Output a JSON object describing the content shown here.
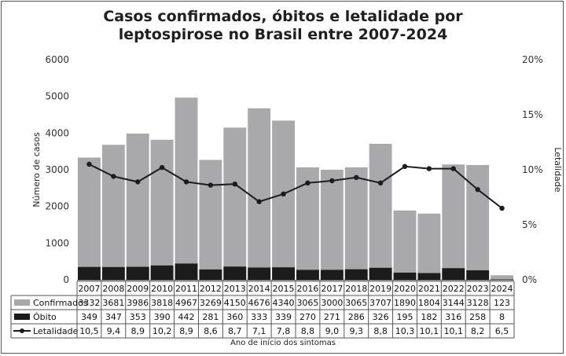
{
  "chart_data": {
    "type": "bar",
    "title_lines": [
      "Casos confirmados, óbitos e letalidade por",
      "leptospirose no Brasil entre 2007-2024"
    ],
    "xlabel": "Ano de início dos sintomas",
    "ylabel": "Número de casos",
    "y2label": "Letalidade",
    "ylim": [
      0,
      6000
    ],
    "yticks": [
      "0",
      "1000",
      "2000",
      "3000",
      "4000",
      "5000",
      "6000"
    ],
    "y2lim": [
      0,
      20
    ],
    "y2ticks": [
      "0%",
      "5%",
      "10%",
      "15%",
      "20%"
    ],
    "categories": [
      "2007",
      "2008",
      "2009",
      "2010",
      "2011",
      "2012",
      "2013",
      "2014",
      "2015",
      "2016",
      "2017",
      "2018",
      "2019",
      "2020",
      "2021",
      "2022",
      "2023",
      "2024"
    ],
    "series": [
      {
        "name": "Confirmados",
        "kind": "bar",
        "color": "#a9a9ab",
        "values": [
          3332,
          3681,
          3986,
          3818,
          4967,
          3269,
          4150,
          4676,
          4340,
          3065,
          3000,
          3065,
          3707,
          1890,
          1804,
          3144,
          3128,
          123
        ],
        "labels": [
          "3332",
          "3681",
          "3986",
          "3818",
          "4967",
          "3269",
          "4150",
          "4676",
          "4340",
          "3065",
          "3000",
          "3065",
          "3707",
          "1890",
          "1804",
          "3144",
          "3128",
          "123"
        ]
      },
      {
        "name": "Óbito",
        "kind": "bar",
        "color": "#1c1c1c",
        "values": [
          349,
          347,
          353,
          390,
          442,
          281,
          360,
          333,
          339,
          270,
          271,
          286,
          326,
          195,
          182,
          316,
          258,
          8
        ],
        "labels": [
          "349",
          "347",
          "353",
          "390",
          "442",
          "281",
          "360",
          "333",
          "339",
          "270",
          "271",
          "286",
          "326",
          "195",
          "182",
          "316",
          "258",
          "8"
        ]
      },
      {
        "name": "Letalidade",
        "kind": "line",
        "axis": "right",
        "color": "#1c1c1c",
        "values": [
          10.5,
          9.4,
          8.9,
          10.2,
          8.9,
          8.6,
          8.7,
          7.1,
          7.8,
          8.8,
          9.0,
          9.3,
          8.8,
          10.3,
          10.1,
          10.1,
          8.2,
          6.5
        ],
        "labels": [
          "10,5",
          "9,4",
          "8,9",
          "10,2",
          "8,9",
          "8,6",
          "8,7",
          "7,1",
          "7,8",
          "8,8",
          "9,0",
          "9,3",
          "8,8",
          "10,3",
          "10,1",
          "10,1",
          "8,2",
          "6,5"
        ]
      }
    ]
  }
}
